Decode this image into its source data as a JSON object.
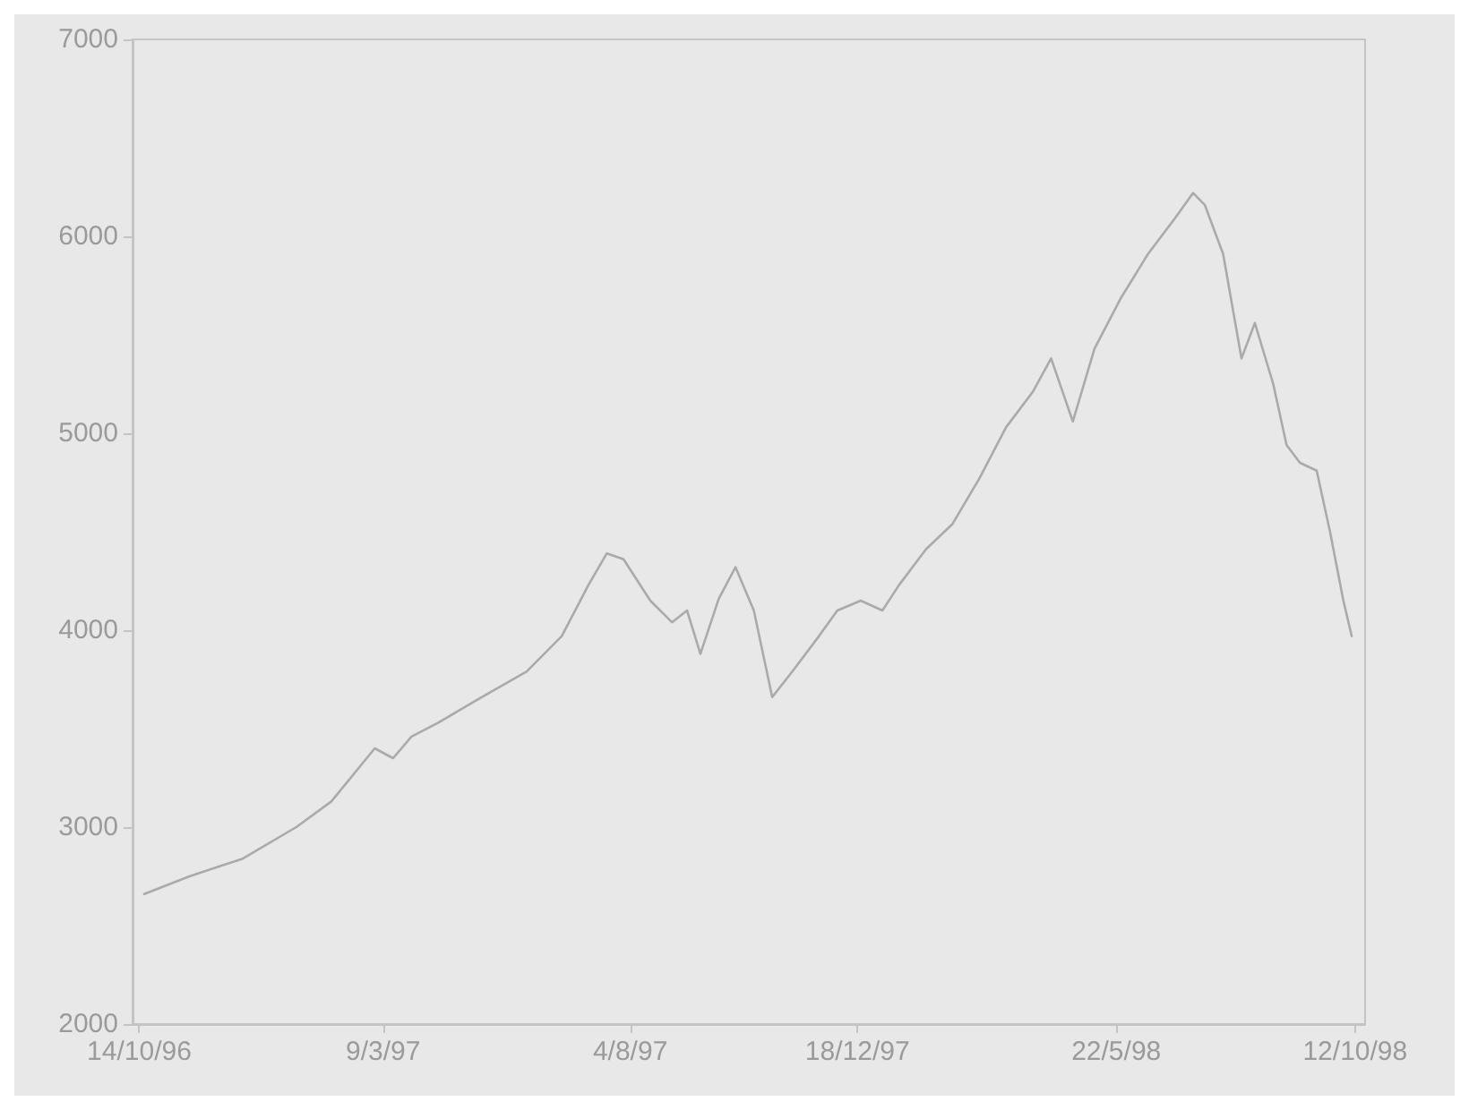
{
  "chart_data": {
    "type": "line",
    "x": [
      "1996-10-17",
      "1996-11-13",
      "1996-12-15",
      "1997-01-16",
      "1997-02-06",
      "1997-03-04",
      "1997-03-15",
      "1997-03-26",
      "1997-04-11",
      "1997-05-07",
      "1997-06-03",
      "1997-06-24",
      "1997-07-10",
      "1997-07-21",
      "1997-07-31",
      "1997-08-16",
      "1997-08-29",
      "1997-09-07",
      "1997-09-15",
      "1997-09-26",
      "1997-10-06",
      "1997-10-17",
      "1997-10-28",
      "1997-11-09",
      "1997-11-25",
      "1997-12-06",
      "1997-12-20",
      "1998-01-02",
      "1998-01-12",
      "1998-01-28",
      "1998-02-13",
      "1998-03-01",
      "1998-03-17",
      "1998-04-02",
      "1998-04-13",
      "1998-04-26",
      "1998-05-09",
      "1998-05-25",
      "1998-06-10",
      "1998-06-26",
      "1998-07-07",
      "1998-07-14",
      "1998-07-25",
      "1998-08-05",
      "1998-08-13",
      "1998-08-24",
      "1998-09-01",
      "1998-09-09",
      "1998-09-19",
      "1998-09-27",
      "1998-10-05",
      "1998-10-10"
    ],
    "series": [
      {
        "color": "#aaaaaa",
        "values": [
          2660,
          2750,
          2840,
          3000,
          3130,
          3400,
          3350,
          3460,
          3530,
          3660,
          3790,
          3970,
          4230,
          4390,
          4360,
          4150,
          4040,
          4100,
          3880,
          4160,
          4320,
          4100,
          3660,
          3790,
          3970,
          4100,
          4150,
          4100,
          4230,
          4410,
          4540,
          4770,
          5030,
          5210,
          5380,
          5060,
          5430,
          5690,
          5910,
          6090,
          6220,
          6160,
          5910,
          5380,
          5560,
          5250,
          4940,
          4850,
          4810,
          4500,
          4150,
          3970
        ]
      }
    ],
    "xlim": [
      "1996-10-10",
      "1998-10-18"
    ],
    "xticks": [
      {
        "value": "1996-10-14",
        "label": "14/10/96"
      },
      {
        "value": "1997-03-09",
        "label": "9/3/97"
      },
      {
        "value": "1997-08-04",
        "label": "4/8/97"
      },
      {
        "value": "1997-12-18",
        "label": "18/12/97"
      },
      {
        "value": "1998-05-22",
        "label": "22/5/98"
      },
      {
        "value": "1998-10-12",
        "label": "12/10/98"
      }
    ],
    "ylim": [
      2000,
      7000
    ],
    "yticks": [
      2000,
      3000,
      4000,
      5000,
      6000,
      7000
    ],
    "grid": false,
    "marker": "none",
    "line_style": "solid"
  }
}
